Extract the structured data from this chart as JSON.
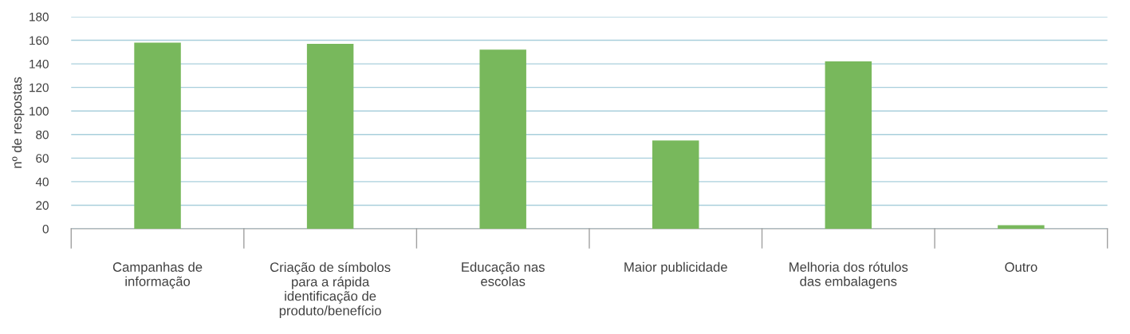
{
  "chart_data": {
    "type": "bar",
    "ylabel": "nº de respostas",
    "categories": [
      "Campanhas de\ninformação",
      "Criação de símbolos\npara a rápida\nidentificação de\nproduto/benefício",
      "Educação nas\nescolas",
      "Maior publicidade",
      "Melhoria dos rótulos\ndas embalagens",
      "Outro"
    ],
    "values": [
      158,
      157,
      152,
      75,
      142,
      3
    ],
    "color": "#78b85c",
    "ylim": [
      0,
      180
    ],
    "yticks": [
      0,
      20,
      40,
      60,
      80,
      100,
      120,
      140,
      160,
      180
    ],
    "grid": "y"
  }
}
